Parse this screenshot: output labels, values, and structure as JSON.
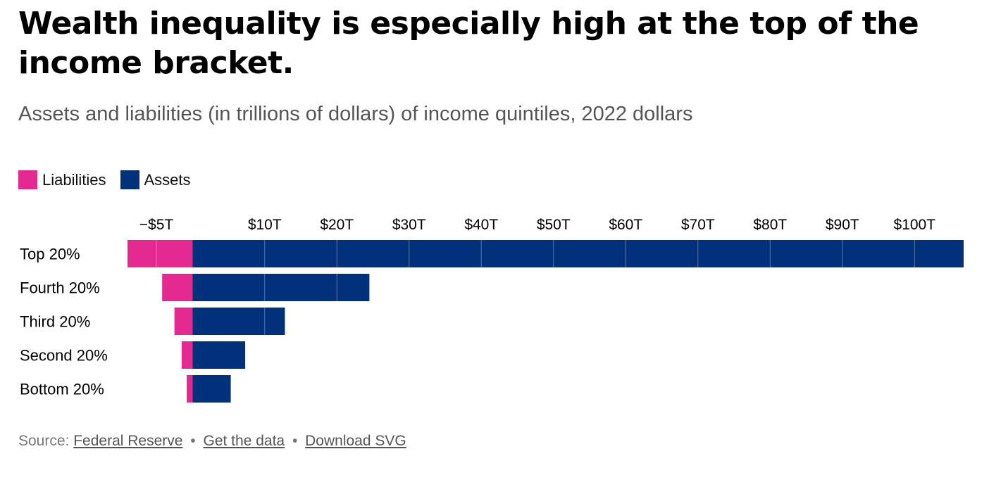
{
  "header": {
    "title": "Wealth inequality is especially high at the top of the income bracket.",
    "subtitle": "Assets and liabilities (in trillions of dollars) of income quintiles, 2022 dollars"
  },
  "legend": {
    "placement": "top-left",
    "items": [
      {
        "label": "Liabilities",
        "color": "#e3298f"
      },
      {
        "label": "Assets",
        "color": "#00317a"
      }
    ]
  },
  "chart_data": {
    "type": "bar",
    "orientation": "horizontal",
    "stacked": "diverging",
    "categories": [
      "Top 20%",
      "Fourth 20%",
      "Third 20%",
      "Second 20%",
      "Bottom 20%"
    ],
    "series": [
      {
        "name": "Liabilities",
        "color": "#e3298f",
        "values": [
          -9.0,
          -4.2,
          -2.5,
          -1.5,
          -0.8
        ]
      },
      {
        "name": "Assets",
        "color": "#00317a",
        "values": [
          106.8,
          24.5,
          12.8,
          7.3,
          5.3
        ]
      }
    ],
    "xlim": [
      -9.0,
      106.8
    ],
    "xticks": [
      -5,
      10,
      20,
      30,
      40,
      50,
      60,
      70,
      80,
      90,
      100
    ],
    "xtick_labels": [
      "−$5T",
      "$10T",
      "$20T",
      "$30T",
      "$40T",
      "$50T",
      "$60T",
      "$70T",
      "$80T",
      "$90T",
      "$100T"
    ],
    "grid": true,
    "xlabel": "",
    "ylabel": ""
  },
  "footer": {
    "source_prefix": "Source:",
    "source_link": "Federal Reserve",
    "separator": "•",
    "data_link": "Get the data",
    "svg_link": "Download SVG"
  }
}
